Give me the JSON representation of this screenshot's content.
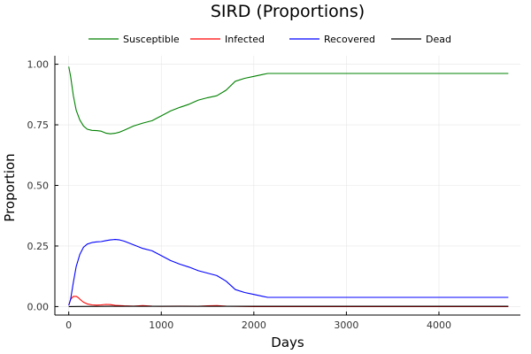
{
  "chart_data": {
    "type": "line",
    "title": "SIRD (Proportions)",
    "xlabel": "Days",
    "ylabel": "Proportion",
    "xlim": [
      -150,
      4880
    ],
    "ylim": [
      -0.035,
      1.035
    ],
    "x_ticks": [
      0,
      1000,
      2000,
      3000,
      4000
    ],
    "y_ticks": [
      0.0,
      0.25,
      0.5,
      0.75,
      1.0
    ],
    "y_tick_labels": [
      "0.00",
      "0.25",
      "0.50",
      "0.75",
      "1.00"
    ],
    "grid": true,
    "legend_position": "top",
    "series": [
      {
        "name": "Susceptible",
        "color": "#008000",
        "x": [
          0,
          20,
          50,
          80,
          120,
          160,
          200,
          250,
          300,
          350,
          400,
          450,
          500,
          550,
          600,
          700,
          800,
          900,
          1000,
          1100,
          1200,
          1300,
          1400,
          1500,
          1600,
          1700,
          1800,
          1900,
          2000,
          2100,
          2150,
          2200,
          3000,
          4000,
          4750
        ],
        "values": [
          0.99,
          0.95,
          0.87,
          0.81,
          0.77,
          0.745,
          0.732,
          0.727,
          0.726,
          0.724,
          0.716,
          0.713,
          0.715,
          0.72,
          0.728,
          0.745,
          0.757,
          0.767,
          0.787,
          0.807,
          0.822,
          0.835,
          0.852,
          0.862,
          0.87,
          0.893,
          0.93,
          0.942,
          0.95,
          0.958,
          0.962,
          0.962,
          0.962,
          0.962,
          0.962
        ]
      },
      {
        "name": "Infected",
        "color": "#ff0000",
        "x": [
          0,
          20,
          50,
          80,
          100,
          130,
          160,
          200,
          250,
          300,
          350,
          400,
          450,
          500,
          600,
          700,
          800,
          900,
          1000,
          1200,
          1400,
          1500,
          1600,
          1700,
          1800,
          2000,
          3000,
          4000,
          4750
        ],
        "values": [
          0.005,
          0.03,
          0.042,
          0.042,
          0.038,
          0.027,
          0.018,
          0.011,
          0.007,
          0.006,
          0.007,
          0.009,
          0.008,
          0.005,
          0.003,
          0.002,
          0.004,
          0.002,
          0.001,
          0.002,
          0.001,
          0.003,
          0.004,
          0.002,
          0.001,
          0.0,
          0.0,
          0.0,
          0.0
        ]
      },
      {
        "name": "Recovered",
        "color": "#0000ff",
        "x": [
          0,
          20,
          50,
          80,
          120,
          160,
          200,
          250,
          300,
          350,
          400,
          450,
          500,
          550,
          600,
          700,
          800,
          900,
          1000,
          1100,
          1200,
          1300,
          1400,
          1500,
          1600,
          1700,
          1800,
          1900,
          2000,
          2100,
          2150,
          2200,
          3000,
          4000,
          4750
        ],
        "values": [
          0.005,
          0.03,
          0.1,
          0.165,
          0.215,
          0.245,
          0.258,
          0.264,
          0.267,
          0.268,
          0.272,
          0.275,
          0.277,
          0.275,
          0.27,
          0.255,
          0.24,
          0.23,
          0.21,
          0.19,
          0.175,
          0.163,
          0.148,
          0.138,
          0.128,
          0.105,
          0.07,
          0.058,
          0.05,
          0.042,
          0.038,
          0.038,
          0.038,
          0.038,
          0.038
        ]
      },
      {
        "name": "Dead",
        "color": "#000000",
        "x": [
          0,
          100,
          500,
          1000,
          2000,
          3000,
          4000,
          4750
        ],
        "values": [
          0.0,
          0.0005,
          0.001,
          0.001,
          0.001,
          0.001,
          0.001,
          0.001
        ]
      }
    ]
  }
}
